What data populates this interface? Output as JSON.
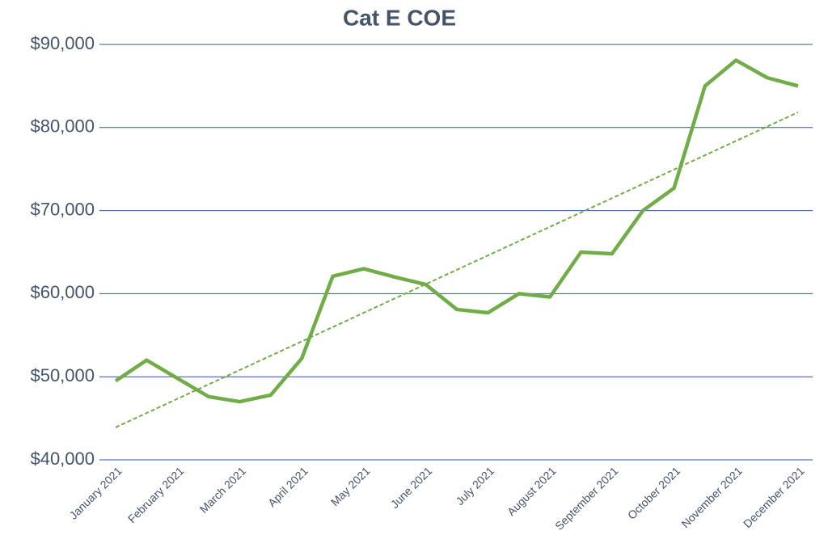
{
  "chart_data": {
    "type": "line",
    "title": "Cat E COE",
    "categories": [
      "January 2021",
      null,
      "February 2021",
      null,
      "March 2021",
      null,
      "April 2021",
      null,
      "May 2021",
      null,
      "June 2021",
      null,
      "July 2021",
      null,
      "August 2021",
      null,
      "September 2021",
      null,
      "October 2021",
      null,
      "November 2021",
      null,
      "December 2021"
    ],
    "series": [
      {
        "name": "Cat E COE",
        "color": "#70ad47",
        "values": [
          49500,
          52000,
          49800,
          47600,
          47000,
          47800,
          52200,
          62100,
          63000,
          62000,
          61100,
          58100,
          57700,
          60000,
          59600,
          65000,
          64800,
          70000,
          72700,
          85000,
          88100,
          86000,
          85000
        ]
      }
    ],
    "trendline": true,
    "ylim": [
      40000,
      90000
    ],
    "yticks": [
      {
        "value": 40000,
        "label": "$40,000"
      },
      {
        "value": 50000,
        "label": "$50,000"
      },
      {
        "value": 60000,
        "label": "$60,000"
      },
      {
        "value": 70000,
        "label": "$70,000"
      },
      {
        "value": 80000,
        "label": "$80,000"
      },
      {
        "value": 90000,
        "label": "$90,000"
      }
    ],
    "grid": true
  }
}
